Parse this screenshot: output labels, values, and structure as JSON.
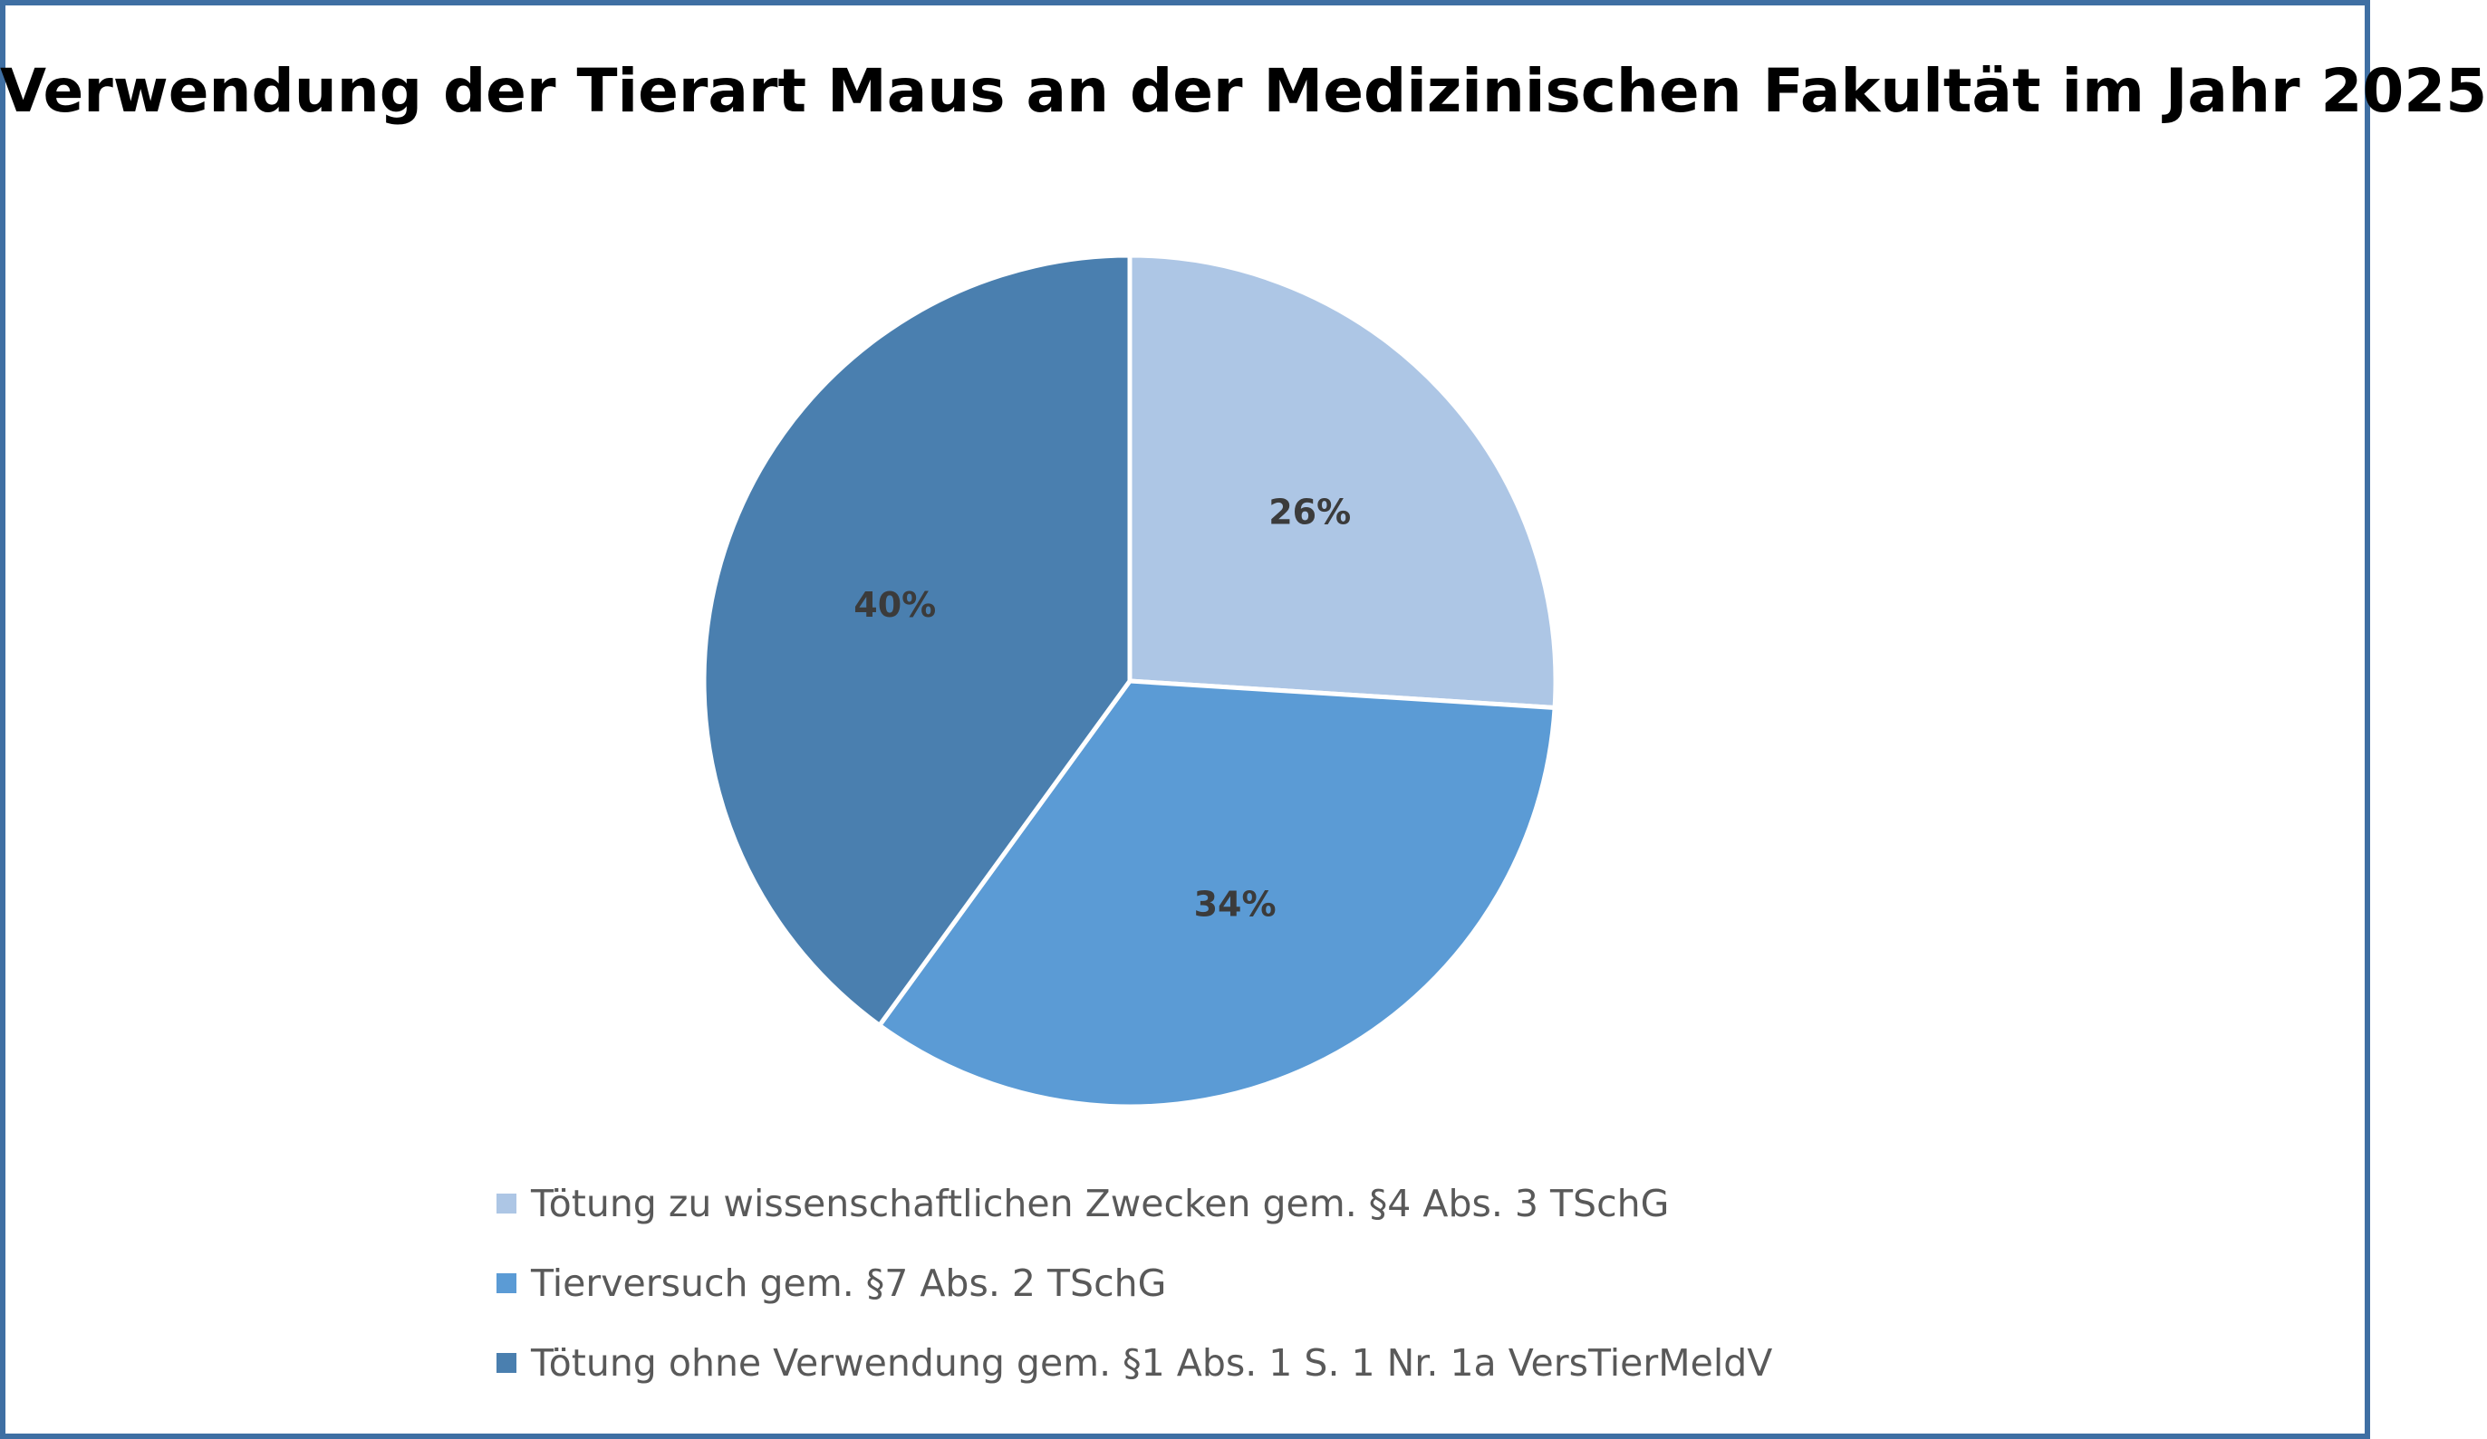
{
  "chart_data": {
    "type": "pie",
    "title": "Verwendung der Tierart Maus an der Medizinischen Fakultät im Jahr 2025",
    "slices": [
      {
        "label": "Tötung zu wissenschaftlichen Zwecken gem. §4 Abs. 3 TSchG",
        "value": 26,
        "value_label": "26%",
        "color": "#adc6e5"
      },
      {
        "label": "Tierversuch gem. §7 Abs. 2 TSchG",
        "value": 34,
        "value_label": "34%",
        "color": "#5b9bd5"
      },
      {
        "label": "Tötung ohne Verwendung gem. §1 Abs. 1 S. 1 Nr. 1a VersTierMeldV",
        "value": 40,
        "value_label": "40%",
        "color": "#4a7faf"
      }
    ],
    "legend_position": "bottom",
    "start_angle": "12 o'clock",
    "direction": "clockwise"
  },
  "colors": {
    "border": "#3f6fa3",
    "slice_separator": "#ffffff"
  }
}
